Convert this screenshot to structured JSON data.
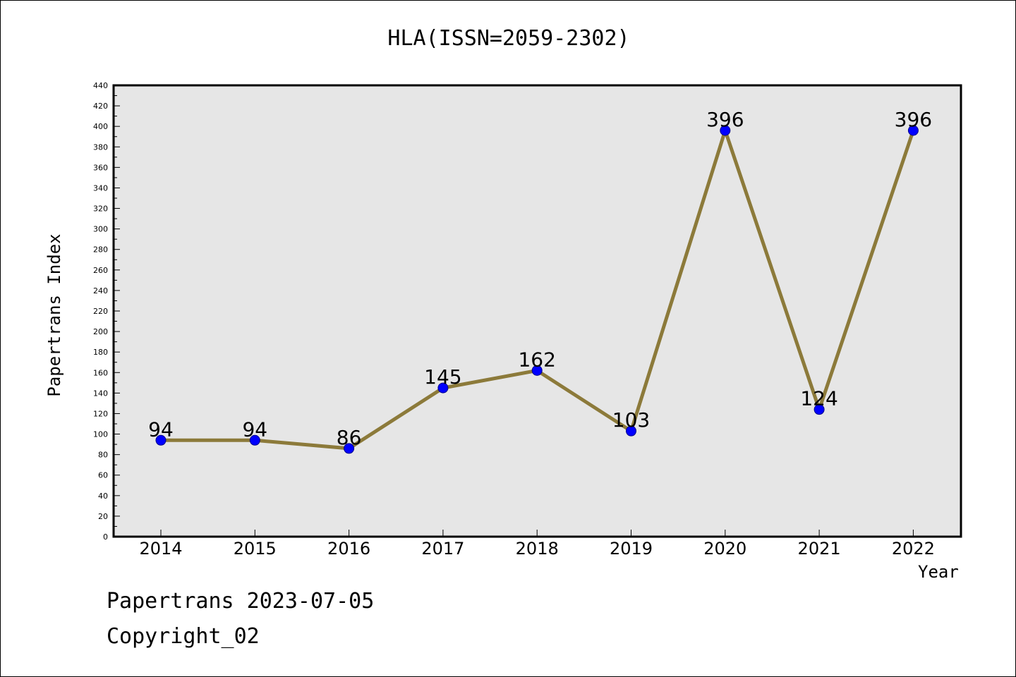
{
  "chart_data": {
    "type": "line",
    "title": "HLA(ISSN=2059-2302)",
    "xlabel": "Year",
    "ylabel": "Papertrans Index",
    "categories": [
      "2014",
      "2015",
      "2016",
      "2017",
      "2018",
      "2019",
      "2020",
      "2021",
      "2022"
    ],
    "series": [
      {
        "values": [
          94,
          94,
          86,
          145,
          162,
          103,
          396,
          124,
          396
        ],
        "line_color": "#8c7a3a",
        "marker_color": "#0000ff"
      }
    ],
    "data_labels": [
      "94",
      "94",
      "86",
      "145",
      "162",
      "103",
      "396",
      "124",
      "396"
    ],
    "ylim": [
      0,
      440
    ],
    "yticks": [
      0,
      20,
      40,
      60,
      80,
      100,
      120,
      140,
      160,
      180,
      200,
      220,
      240,
      260,
      280,
      300,
      320,
      340,
      360,
      380,
      400,
      420,
      440
    ],
    "ytick_minor_step": 10,
    "grid": false,
    "plot_background": "#e6e6e6"
  },
  "footer": {
    "date_text": "Papertrans 2023-07-05",
    "copyright_text": "Copyright_02"
  }
}
